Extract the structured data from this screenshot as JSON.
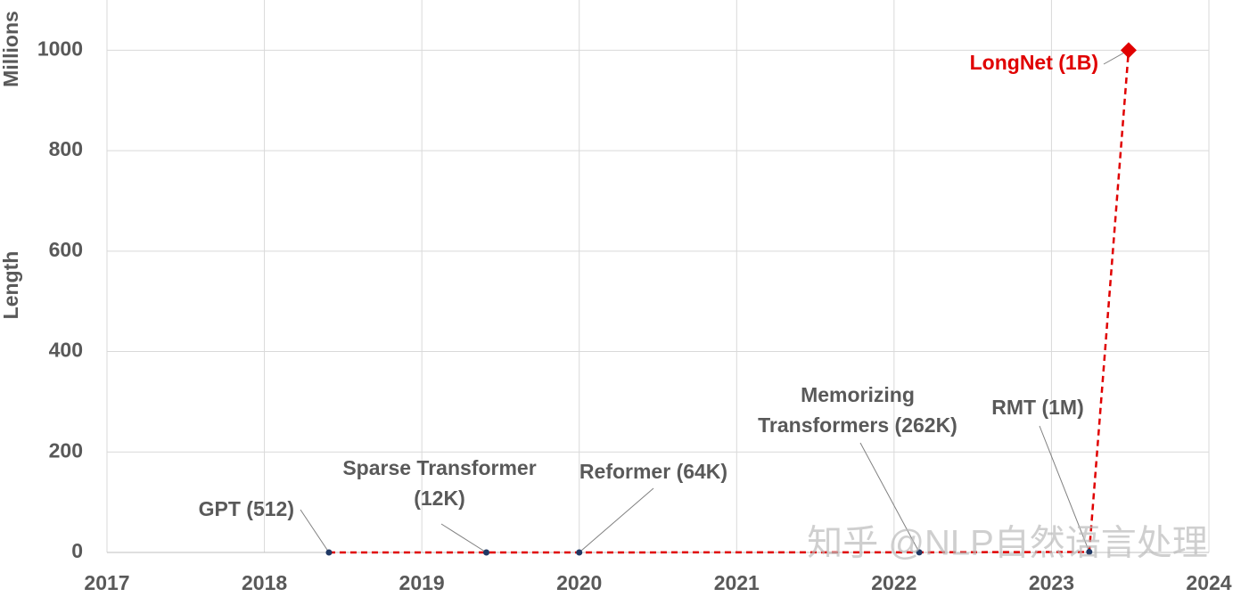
{
  "chart_data": {
    "type": "line",
    "y_axis_label": "Length",
    "y_axis_unit": "Millions",
    "x": [
      2018.41,
      2019.41,
      2020.0,
      2022.16,
      2023.24,
      2023.49
    ],
    "series": [
      {
        "color": "#e00000",
        "marker_color": "#1f3864",
        "highlight_color": "#e00000",
        "values": [
          0.000512,
          0.012,
          0.064,
          0.262,
          1,
          1000
        ]
      }
    ],
    "value_labels": [
      [
        "GPT (512)"
      ],
      [
        "Sparse Transformer",
        "(12K)"
      ],
      [
        "Reformer (64K)"
      ],
      [
        "Memorizing",
        "Transformers (262K)"
      ],
      [
        "RMT (1M)"
      ],
      [
        "LongNet (1B)"
      ]
    ],
    "xlim": [
      2017,
      2024
    ],
    "xticks": [
      2017,
      2018,
      2019,
      2020,
      2021,
      2022,
      2023,
      2024
    ],
    "ylim": [
      0,
      1100
    ],
    "yticks": [
      0,
      200,
      400,
      600,
      800,
      1000
    ],
    "grid": true,
    "watermark": "知乎 @NLP自然语言处理"
  }
}
